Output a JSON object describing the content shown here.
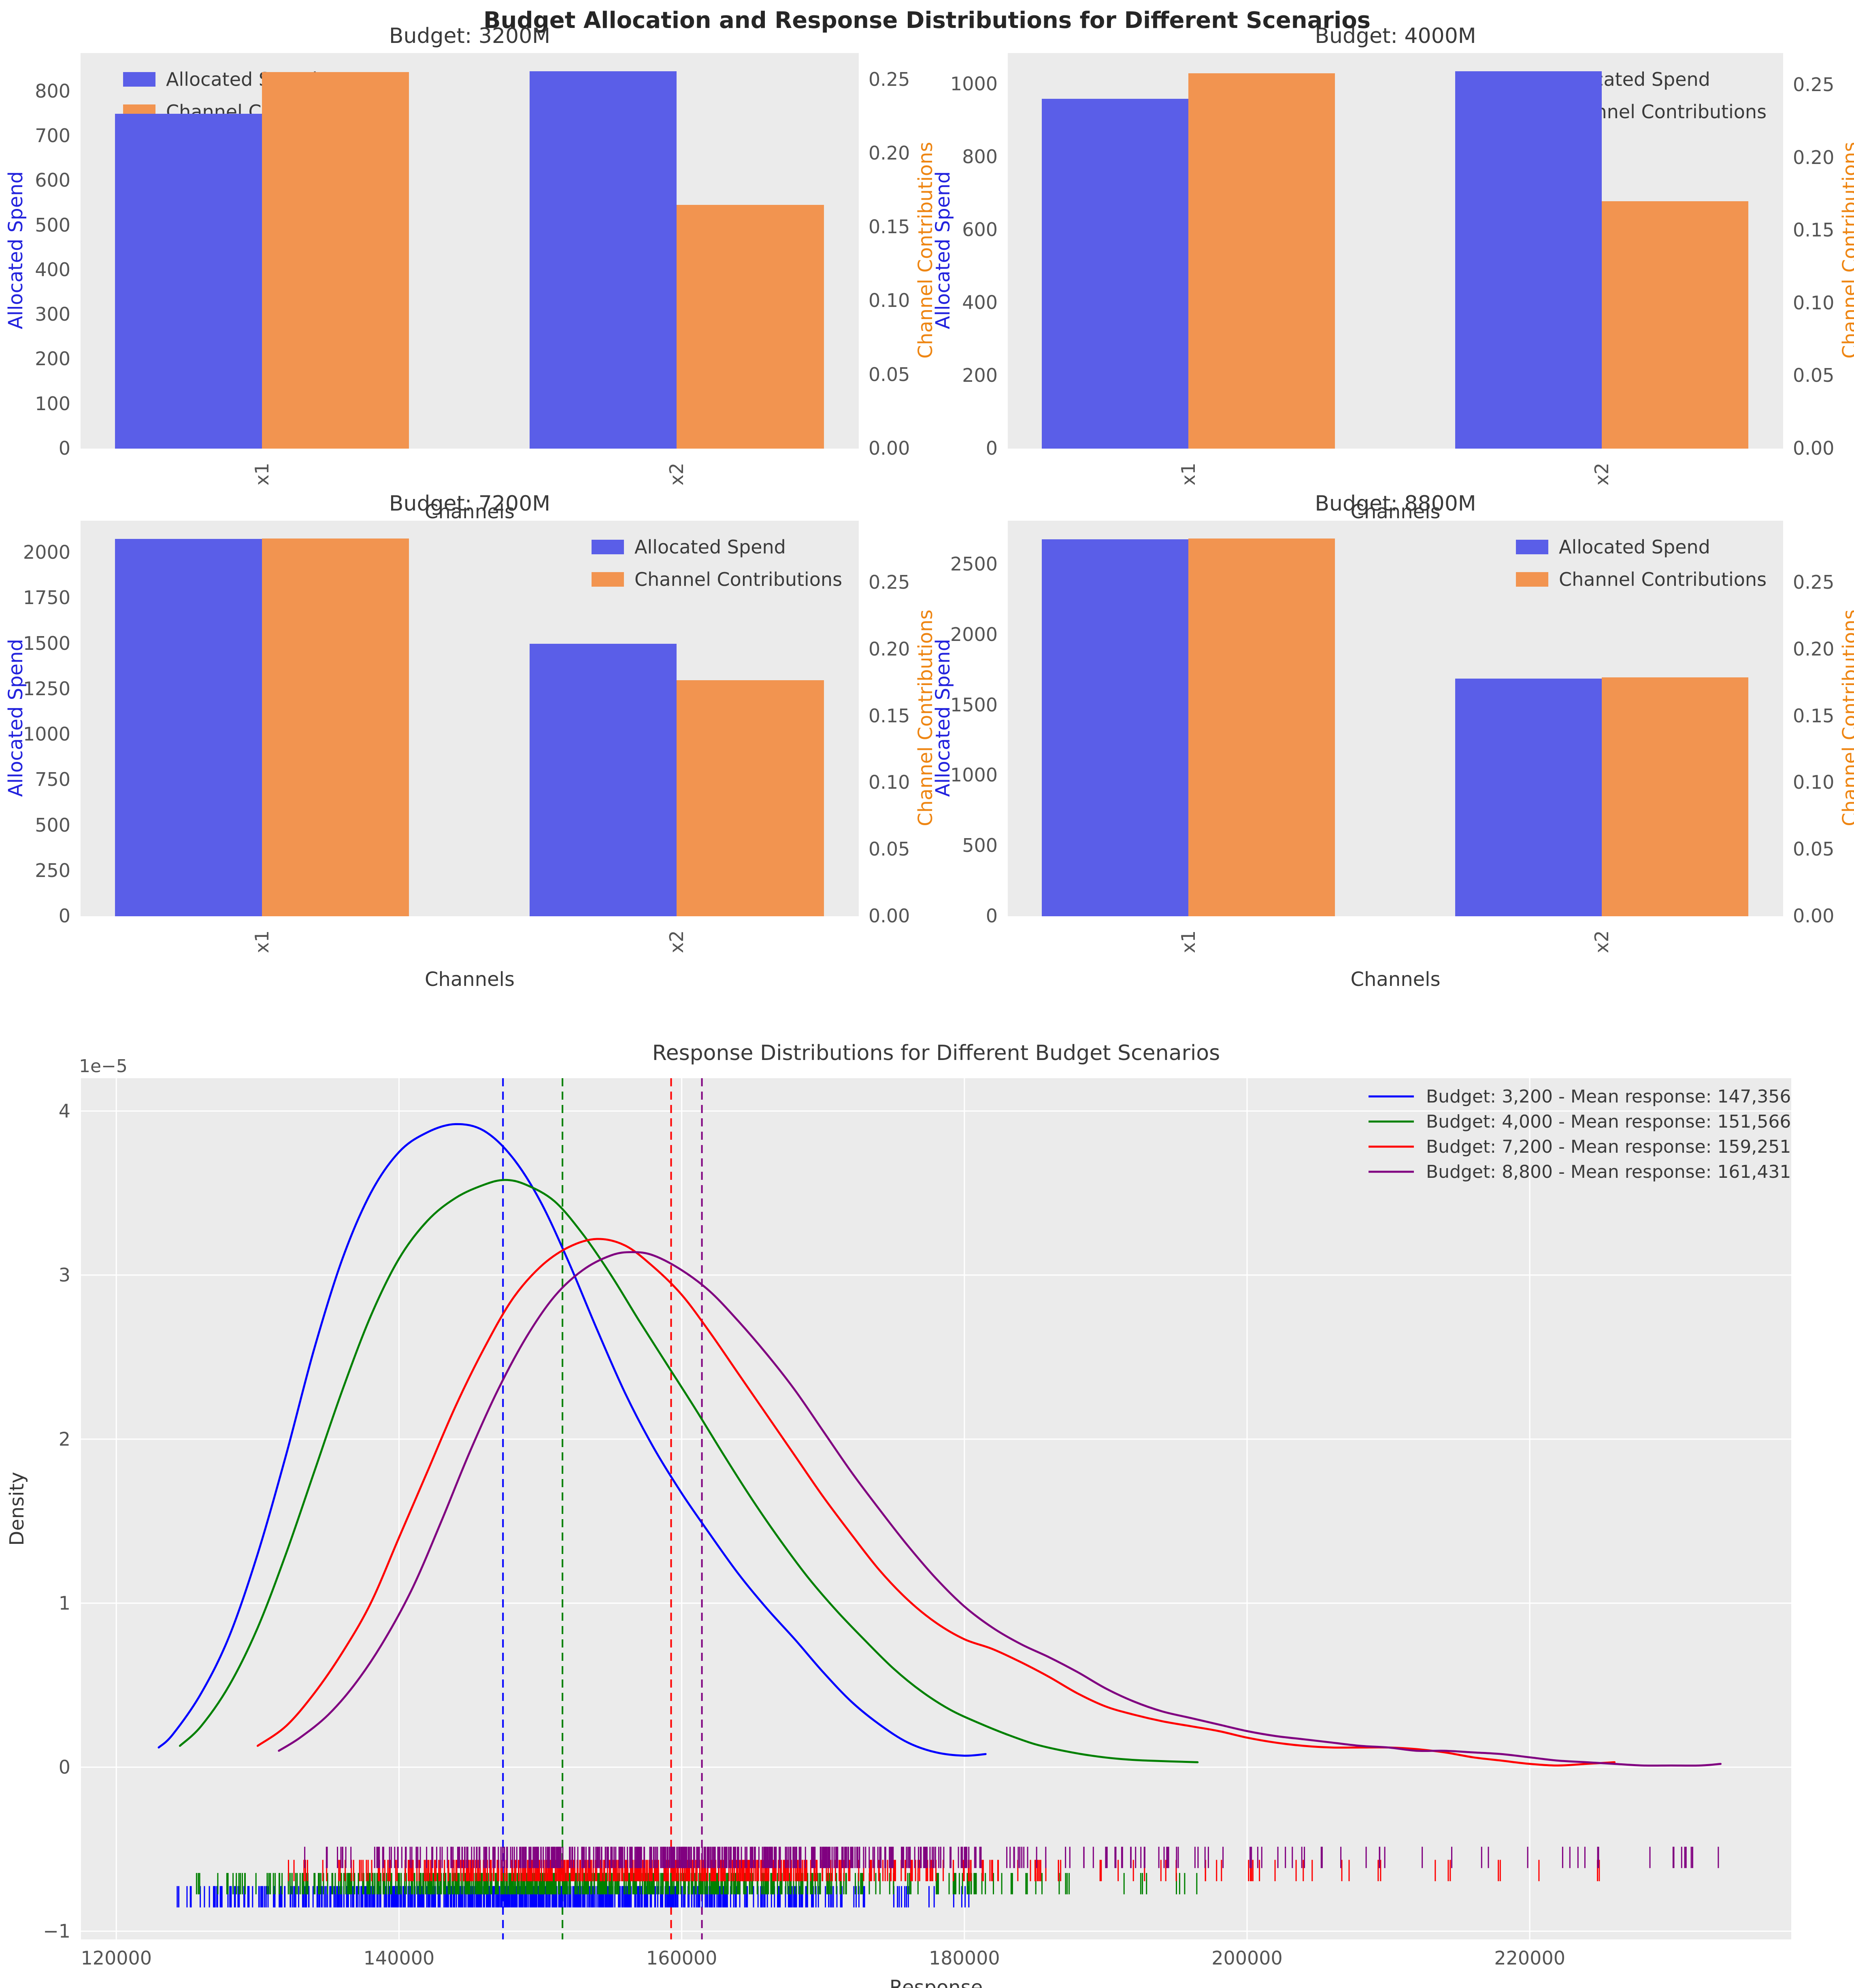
{
  "figure": {
    "suptitle": "Budget Allocation and Response Distributions for Different Scenarios",
    "colors": {
      "figure_bg": "#ffffff",
      "axes_bg": "#ebebeb",
      "grid": "#ffffff",
      "bar_spend": "#5a5ee8",
      "bar_contrib": "#f29450",
      "left_axis_label": "#2222dd",
      "right_axis_label": "#ee8512",
      "tick_text": "#555555",
      "title_text": "#3a3a3a",
      "suptitle_text": "#262626",
      "legend_text": "#3a3a3a"
    }
  },
  "chart_data": [
    {
      "type": "bar",
      "title": "Budget: 3200M",
      "categories": [
        "x1",
        "x2"
      ],
      "xlabel": "Channels",
      "ylabel_left": "Allocated Spend",
      "ylabel_right": "Channel Contributions",
      "legend_position": "upper-left",
      "left_ticks": [
        0,
        100,
        200,
        300,
        400,
        500,
        600,
        700,
        800
      ],
      "right_ticks": [
        0.0,
        0.05,
        0.1,
        0.15,
        0.2,
        0.25
      ],
      "left_axis_max": 886,
      "right_axis_max": 0.268,
      "series": [
        {
          "name": "Allocated Spend",
          "axis": "left",
          "values": [
            750,
            845
          ]
        },
        {
          "name": "Channel Contributions",
          "axis": "right",
          "values": [
            0.255,
            0.165
          ]
        }
      ]
    },
    {
      "type": "bar",
      "title": "Budget: 4000M",
      "categories": [
        "x1",
        "x2"
      ],
      "xlabel": "Channels",
      "ylabel_left": "Allocated Spend",
      "ylabel_right": "Channel Contributions",
      "legend_position": "upper-right",
      "left_ticks": [
        0,
        200,
        400,
        600,
        800,
        1000
      ],
      "right_ticks": [
        0.0,
        0.05,
        0.1,
        0.15,
        0.2,
        0.25
      ],
      "left_axis_max": 1085,
      "right_axis_max": 0.272,
      "series": [
        {
          "name": "Allocated Spend",
          "axis": "left",
          "values": [
            960,
            1035
          ]
        },
        {
          "name": "Channel Contributions",
          "axis": "right",
          "values": [
            0.258,
            0.17
          ]
        }
      ]
    },
    {
      "type": "bar",
      "title": "Budget: 7200M",
      "categories": [
        "x1",
        "x2"
      ],
      "xlabel": "Channels",
      "ylabel_left": "Allocated Spend",
      "ylabel_right": "Channel Contributions",
      "legend_position": "upper-right",
      "left_ticks": [
        0,
        250,
        500,
        750,
        1000,
        1250,
        1500,
        1750,
        2000
      ],
      "right_ticks": [
        0.0,
        0.05,
        0.1,
        0.15,
        0.2,
        0.25
      ],
      "left_axis_max": 2176,
      "right_axis_max": 0.2965,
      "series": [
        {
          "name": "Allocated Spend",
          "axis": "left",
          "values": [
            2075,
            1500
          ]
        },
        {
          "name": "Channel Contributions",
          "axis": "right",
          "values": [
            0.283,
            0.177
          ]
        }
      ]
    },
    {
      "type": "bar",
      "title": "Budget: 8800M",
      "categories": [
        "x1",
        "x2"
      ],
      "xlabel": "Channels",
      "ylabel_left": "Allocated Spend",
      "ylabel_right": "Channel Contributions",
      "legend_position": "upper-right",
      "left_ticks": [
        0,
        500,
        1000,
        1500,
        2000,
        2500
      ],
      "right_ticks": [
        0.0,
        0.05,
        0.1,
        0.15,
        0.2,
        0.25
      ],
      "left_axis_max": 2811,
      "right_axis_max": 0.2965,
      "series": [
        {
          "name": "Allocated Spend",
          "axis": "left",
          "values": [
            2680,
            1690
          ]
        },
        {
          "name": "Channel Contributions",
          "axis": "right",
          "values": [
            0.283,
            0.179
          ]
        }
      ]
    },
    {
      "type": "line",
      "title": "Response Distributions for Different Budget Scenarios",
      "xlabel": "Response",
      "ylabel": "Density",
      "offset_label": "1e−5",
      "xlim": [
        117500,
        238500
      ],
      "ylim_1e5": [
        -1.05,
        4.2
      ],
      "x_ticks": [
        120000,
        140000,
        160000,
        180000,
        200000,
        220000
      ],
      "y_ticks_1e5": [
        -1,
        0,
        1,
        2,
        3,
        4
      ],
      "grid": true,
      "legend_position": "upper-right",
      "series": [
        {
          "name": "Budget: 3,200 - Mean response: 147,356",
          "color": "#0000ff",
          "mean": 147356,
          "points_k_1e5": [
            [
              123,
              0.12
            ],
            [
              124,
              0.2
            ],
            [
              126,
              0.45
            ],
            [
              128,
              0.8
            ],
            [
              130,
              1.3
            ],
            [
              132,
              1.9
            ],
            [
              134,
              2.55
            ],
            [
              136,
              3.1
            ],
            [
              138,
              3.5
            ],
            [
              140,
              3.75
            ],
            [
              142,
              3.87
            ],
            [
              144,
              3.92
            ],
            [
              146,
              3.88
            ],
            [
              148,
              3.72
            ],
            [
              150,
              3.45
            ],
            [
              152,
              3.08
            ],
            [
              154,
              2.67
            ],
            [
              156,
              2.28
            ],
            [
              158,
              1.95
            ],
            [
              160,
              1.67
            ],
            [
              162,
              1.42
            ],
            [
              164,
              1.18
            ],
            [
              166,
              0.97
            ],
            [
              168,
              0.78
            ],
            [
              170,
              0.58
            ],
            [
              172,
              0.4
            ],
            [
              174,
              0.26
            ],
            [
              176,
              0.15
            ],
            [
              178,
              0.09
            ],
            [
              180,
              0.07
            ],
            [
              181.5,
              0.08
            ]
          ]
        },
        {
          "name": "Budget: 4,000 - Mean response: 151,566",
          "color": "#008000",
          "mean": 151566,
          "points_k_1e5": [
            [
              124.5,
              0.13
            ],
            [
              126,
              0.25
            ],
            [
              128,
              0.5
            ],
            [
              130,
              0.85
            ],
            [
              132,
              1.3
            ],
            [
              134,
              1.8
            ],
            [
              136,
              2.3
            ],
            [
              138,
              2.75
            ],
            [
              140,
              3.1
            ],
            [
              142,
              3.33
            ],
            [
              144,
              3.47
            ],
            [
              146,
              3.55
            ],
            [
              147.5,
              3.58
            ],
            [
              149,
              3.55
            ],
            [
              151,
              3.45
            ],
            [
              153,
              3.25
            ],
            [
              155,
              3.0
            ],
            [
              157,
              2.72
            ],
            [
              159,
              2.45
            ],
            [
              161,
              2.18
            ],
            [
              163,
              1.9
            ],
            [
              165,
              1.63
            ],
            [
              167,
              1.38
            ],
            [
              169,
              1.15
            ],
            [
              171,
              0.95
            ],
            [
              173,
              0.77
            ],
            [
              175,
              0.6
            ],
            [
              177,
              0.46
            ],
            [
              179,
              0.35
            ],
            [
              181,
              0.27
            ],
            [
              183,
              0.2
            ],
            [
              185,
              0.14
            ],
            [
              187,
              0.1
            ],
            [
              189,
              0.07
            ],
            [
              191,
              0.05
            ],
            [
              193,
              0.04
            ],
            [
              196.5,
              0.03
            ]
          ]
        },
        {
          "name": "Budget: 7,200 - Mean response: 159,251",
          "color": "#ff0000",
          "mean": 159251,
          "points_k_1e5": [
            [
              130,
              0.13
            ],
            [
              132,
              0.25
            ],
            [
              134,
              0.45
            ],
            [
              136,
              0.7
            ],
            [
              138,
              1.0
            ],
            [
              140,
              1.4
            ],
            [
              142,
              1.8
            ],
            [
              144,
              2.2
            ],
            [
              146,
              2.55
            ],
            [
              148,
              2.85
            ],
            [
              150,
              3.05
            ],
            [
              152,
              3.17
            ],
            [
              154,
              3.22
            ],
            [
              156,
              3.18
            ],
            [
              158,
              3.05
            ],
            [
              160,
              2.88
            ],
            [
              162,
              2.65
            ],
            [
              164,
              2.4
            ],
            [
              166,
              2.15
            ],
            [
              168,
              1.9
            ],
            [
              170,
              1.65
            ],
            [
              172,
              1.42
            ],
            [
              174,
              1.2
            ],
            [
              176,
              1.02
            ],
            [
              178,
              0.88
            ],
            [
              180,
              0.78
            ],
            [
              182,
              0.72
            ],
            [
              184,
              0.64
            ],
            [
              186,
              0.55
            ],
            [
              188,
              0.45
            ],
            [
              190,
              0.37
            ],
            [
              192,
              0.32
            ],
            [
              194,
              0.28
            ],
            [
              196,
              0.25
            ],
            [
              198,
              0.22
            ],
            [
              200,
              0.18
            ],
            [
              202,
              0.15
            ],
            [
              204,
              0.13
            ],
            [
              206,
              0.12
            ],
            [
              208,
              0.12
            ],
            [
              210,
              0.12
            ],
            [
              212,
              0.11
            ],
            [
              214,
              0.09
            ],
            [
              216,
              0.06
            ],
            [
              218,
              0.04
            ],
            [
              220,
              0.02
            ],
            [
              222,
              0.01
            ],
            [
              224,
              0.02
            ],
            [
              226,
              0.03
            ]
          ]
        },
        {
          "name": "Budget: 8,800 - Mean response: 161,431",
          "color": "#800080",
          "mean": 161431,
          "points_k_1e5": [
            [
              131.5,
              0.1
            ],
            [
              133,
              0.18
            ],
            [
              135,
              0.32
            ],
            [
              137,
              0.52
            ],
            [
              139,
              0.78
            ],
            [
              141,
              1.1
            ],
            [
              143,
              1.5
            ],
            [
              145,
              1.92
            ],
            [
              147,
              2.3
            ],
            [
              149,
              2.62
            ],
            [
              151,
              2.87
            ],
            [
              153,
              3.03
            ],
            [
              155,
              3.12
            ],
            [
              156.5,
              3.14
            ],
            [
              158,
              3.12
            ],
            [
              160,
              3.03
            ],
            [
              162,
              2.9
            ],
            [
              164,
              2.72
            ],
            [
              166,
              2.52
            ],
            [
              168,
              2.3
            ],
            [
              170,
              2.05
            ],
            [
              172,
              1.8
            ],
            [
              174,
              1.57
            ],
            [
              176,
              1.35
            ],
            [
              178,
              1.15
            ],
            [
              180,
              0.98
            ],
            [
              182,
              0.85
            ],
            [
              184,
              0.75
            ],
            [
              186,
              0.67
            ],
            [
              188,
              0.58
            ],
            [
              190,
              0.48
            ],
            [
              192,
              0.4
            ],
            [
              194,
              0.34
            ],
            [
              196,
              0.3
            ],
            [
              198,
              0.26
            ],
            [
              200,
              0.22
            ],
            [
              202,
              0.19
            ],
            [
              204,
              0.17
            ],
            [
              206,
              0.15
            ],
            [
              208,
              0.13
            ],
            [
              210,
              0.12
            ],
            [
              212,
              0.1
            ],
            [
              214,
              0.1
            ],
            [
              216,
              0.09
            ],
            [
              218,
              0.08
            ],
            [
              220,
              0.06
            ],
            [
              222,
              0.04
            ],
            [
              224,
              0.03
            ],
            [
              226,
              0.02
            ],
            [
              228,
              0.01
            ],
            [
              230,
              0.01
            ],
            [
              232,
              0.01
            ],
            [
              233.5,
              0.02
            ]
          ]
        }
      ],
      "rug": {
        "tick_height_1e5": 0.065,
        "rows": [
          {
            "series": "Budget: 3,200",
            "color": "#0000ff",
            "center_1e5": -0.79,
            "count": 750,
            "x_min": 123000,
            "x_mode": 145000,
            "x_dense_max": 175000,
            "x_max": 182000,
            "tail_fraction": 0.02,
            "seed": 11
          },
          {
            "series": "Budget: 4,000",
            "color": "#008000",
            "center_1e5": -0.71,
            "count": 650,
            "x_min": 124500,
            "x_mode": 149000,
            "x_dense_max": 178000,
            "x_max": 196500,
            "tail_fraction": 0.05,
            "seed": 22
          },
          {
            "series": "Budget: 7,200",
            "color": "#ff0000",
            "center_1e5": -0.63,
            "count": 550,
            "x_min": 130000,
            "x_mode": 156000,
            "x_dense_max": 185000,
            "x_max": 226000,
            "tail_fraction": 0.1,
            "seed": 33
          },
          {
            "series": "Budget: 8,800",
            "color": "#800080",
            "center_1e5": -0.55,
            "count": 550,
            "x_min": 131500,
            "x_mode": 158000,
            "x_dense_max": 190000,
            "x_max": 233500,
            "tail_fraction": 0.12,
            "seed": 44
          }
        ]
      }
    }
  ]
}
